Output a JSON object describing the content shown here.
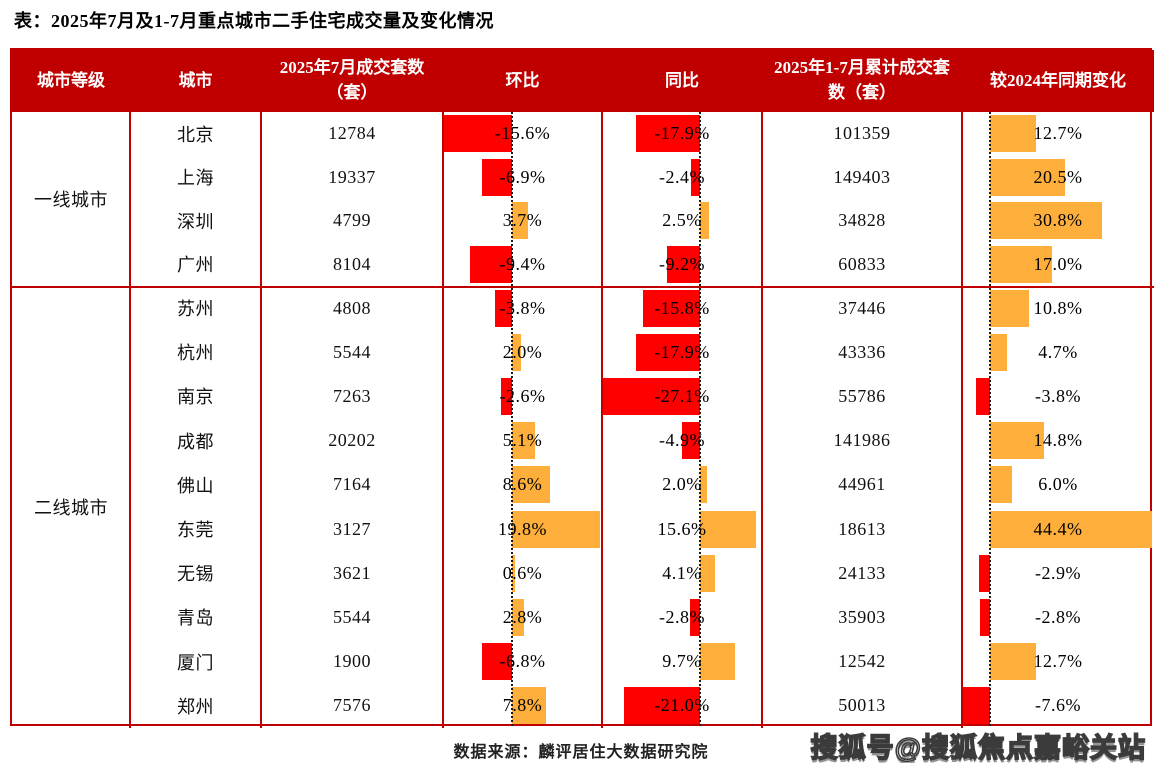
{
  "title": "表：2025年7月及1-7月重点城市二手住宅成交量及变化情况",
  "source": "数据来源：麟评居住大数据研究院",
  "watermark": "搜狐号@搜狐焦点嘉峪关站",
  "colors": {
    "header_red": "#C00000",
    "border_red": "#C00000",
    "bar_negative_red": "#FF0000",
    "bar_positive_orange": "#FDAE3B"
  },
  "table": {
    "headers": [
      "城市等级",
      "城市",
      "2025年7月成交套数（套）",
      "环比",
      "同比",
      "2025年1-7月累计成交套数（套）",
      "较2024年同期变化"
    ],
    "tiers": [
      {
        "label": "一线城市",
        "rows": [
          {
            "city": "北京",
            "jul": "12784",
            "mom": "-15.6%",
            "mom_v": -15.6,
            "yoy": "-17.9%",
            "yoy_v": -17.9,
            "cum": "101359",
            "chg": "12.7%",
            "chg_v": 12.7
          },
          {
            "city": "上海",
            "jul": "19337",
            "mom": "-6.9%",
            "mom_v": -6.9,
            "yoy": "-2.4%",
            "yoy_v": -2.4,
            "cum": "149403",
            "chg": "20.5%",
            "chg_v": 20.5
          },
          {
            "city": "深圳",
            "jul": "4799",
            "mom": "3.7%",
            "mom_v": 3.7,
            "yoy": "2.5%",
            "yoy_v": 2.5,
            "cum": "34828",
            "chg": "30.8%",
            "chg_v": 30.8
          },
          {
            "city": "广州",
            "jul": "8104",
            "mom": "-9.4%",
            "mom_v": -9.4,
            "yoy": "-9.2%",
            "yoy_v": -9.2,
            "cum": "60833",
            "chg": "17.0%",
            "chg_v": 17.0
          }
        ]
      },
      {
        "label": "二线城市",
        "rows": [
          {
            "city": "苏州",
            "jul": "4808",
            "mom": "-3.8%",
            "mom_v": -3.8,
            "yoy": "-15.8%",
            "yoy_v": -15.8,
            "cum": "37446",
            "chg": "10.8%",
            "chg_v": 10.8
          },
          {
            "city": "杭州",
            "jul": "5544",
            "mom": "2.0%",
            "mom_v": 2.0,
            "yoy": "-17.9%",
            "yoy_v": -17.9,
            "cum": "43336",
            "chg": "4.7%",
            "chg_v": 4.7
          },
          {
            "city": "南京",
            "jul": "7263",
            "mom": "-2.6%",
            "mom_v": -2.6,
            "yoy": "-27.1%",
            "yoy_v": -27.1,
            "cum": "55786",
            "chg": "-3.8%",
            "chg_v": -3.8
          },
          {
            "city": "成都",
            "jul": "20202",
            "mom": "5.1%",
            "mom_v": 5.1,
            "yoy": "-4.9%",
            "yoy_v": -4.9,
            "cum": "141986",
            "chg": "14.8%",
            "chg_v": 14.8
          },
          {
            "city": "佛山",
            "jul": "7164",
            "mom": "8.6%",
            "mom_v": 8.6,
            "yoy": "2.0%",
            "yoy_v": 2.0,
            "cum": "44961",
            "chg": "6.0%",
            "chg_v": 6.0
          },
          {
            "city": "东莞",
            "jul": "3127",
            "mom": "19.8%",
            "mom_v": 19.8,
            "yoy": "15.6%",
            "yoy_v": 15.6,
            "cum": "18613",
            "chg": "44.4%",
            "chg_v": 44.4
          },
          {
            "city": "无锡",
            "jul": "3621",
            "mom": "0.6%",
            "mom_v": 0.6,
            "yoy": "4.1%",
            "yoy_v": 4.1,
            "cum": "24133",
            "chg": "-2.9%",
            "chg_v": -2.9
          },
          {
            "city": "青岛",
            "jul": "5544",
            "mom": "2.8%",
            "mom_v": 2.8,
            "yoy": "-2.8%",
            "yoy_v": -2.8,
            "cum": "35903",
            "chg": "-2.8%",
            "chg_v": -2.8
          },
          {
            "city": "厦门",
            "jul": "1900",
            "mom": "-6.8%",
            "mom_v": -6.8,
            "yoy": "9.7%",
            "yoy_v": 9.7,
            "cum": "12542",
            "chg": "12.7%",
            "chg_v": 12.7
          },
          {
            "city": "郑州",
            "jul": "7576",
            "mom": "7.8%",
            "mom_v": 7.8,
            "yoy": "-21.0%",
            "yoy_v": -21.0,
            "cum": "50013",
            "chg": "-7.6%",
            "chg_v": -7.6
          }
        ]
      }
    ]
  },
  "chart_data": {
    "type": "table",
    "title": "表：2025年7月及1-7月重点城市二手住宅成交量及变化情况",
    "columns": [
      "城市等级",
      "城市",
      "2025年7月成交套数（套）",
      "环比",
      "同比",
      "2025年1-7月累计成交套数（套）",
      "较2024年同期变化"
    ],
    "rows": [
      [
        "一线城市",
        "北京",
        12784,
        -15.6,
        -17.9,
        101359,
        12.7
      ],
      [
        "一线城市",
        "上海",
        19337,
        -6.9,
        -2.4,
        149403,
        20.5
      ],
      [
        "一线城市",
        "深圳",
        4799,
        3.7,
        2.5,
        34828,
        30.8
      ],
      [
        "一线城市",
        "广州",
        8104,
        -9.4,
        -9.2,
        60833,
        17.0
      ],
      [
        "二线城市",
        "苏州",
        4808,
        -3.8,
        -15.8,
        37446,
        10.8
      ],
      [
        "二线城市",
        "杭州",
        5544,
        2.0,
        -17.9,
        43336,
        4.7
      ],
      [
        "二线城市",
        "南京",
        7263,
        -2.6,
        -27.1,
        55786,
        -3.8
      ],
      [
        "二线城市",
        "成都",
        20202,
        5.1,
        -4.9,
        141986,
        14.8
      ],
      [
        "二线城市",
        "佛山",
        7164,
        8.6,
        2.0,
        44961,
        6.0
      ],
      [
        "二线城市",
        "东莞",
        3127,
        19.8,
        15.6,
        18613,
        44.4
      ],
      [
        "二线城市",
        "无锡",
        3621,
        0.6,
        4.1,
        24133,
        -2.9
      ],
      [
        "二线城市",
        "青岛",
        5544,
        2.8,
        -2.8,
        35903,
        -2.8
      ],
      [
        "二线城市",
        "厦门",
        1900,
        -6.8,
        9.7,
        12542,
        12.7
      ],
      [
        "二线城市",
        "郑州",
        7576,
        7.8,
        -21.0,
        50013,
        -7.6
      ]
    ],
    "bar_columns": [
      "环比",
      "同比",
      "较2024年同期变化"
    ],
    "bar_style": {
      "negative_color": "#FF0000",
      "positive_color": "#FDAE3B",
      "zero_line": "dotted-black"
    },
    "notes": "单元格内条形图：负值为红色向左，正值为橙色向右",
    "source": "数据来源：麟评居住大数据研究院"
  }
}
